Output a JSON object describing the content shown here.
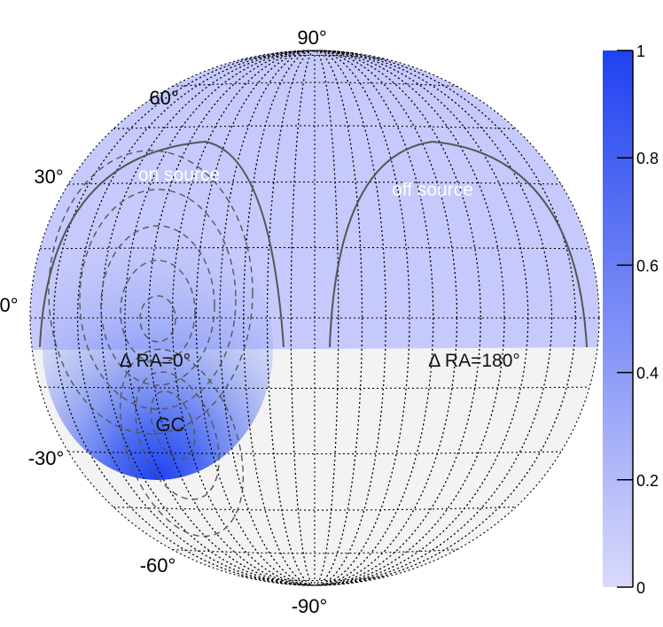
{
  "chart_data": {
    "type": "heatmap",
    "projection": "aitoff",
    "lat_ticks": [
      {
        "value": 90,
        "label": "90°"
      },
      {
        "value": 60,
        "label": "60°"
      },
      {
        "value": 30,
        "label": "30°"
      },
      {
        "value": 0,
        "label": "0°"
      },
      {
        "value": -30,
        "label": "-30°"
      },
      {
        "value": -60,
        "label": "-60°"
      },
      {
        "value": -90,
        "label": "-90°"
      }
    ],
    "colorbar": {
      "range": [
        0,
        1
      ],
      "ticks": [
        {
          "value": 0,
          "label": "0"
        },
        {
          "value": 0.2,
          "label": "0.2"
        },
        {
          "value": 0.4,
          "label": "0.4"
        },
        {
          "value": 0.6,
          "label": "0.6"
        },
        {
          "value": 0.8,
          "label": "0.8"
        },
        {
          "value": 1,
          "label": "1"
        }
      ],
      "low_color": "#d9d9fb",
      "high_color": "#1f42f0"
    },
    "annotations": [
      {
        "id": "on-source",
        "text": "on source"
      },
      {
        "id": "off-source",
        "text": "off source"
      },
      {
        "id": "dra-0",
        "text": "Δ RA=0°"
      },
      {
        "id": "dra-180",
        "text": "Δ RA=180°"
      },
      {
        "id": "gc",
        "text": "GC"
      }
    ],
    "colors": {
      "visible_sky": "#c6c9fb",
      "unobserved_sky": "#f3f3f3",
      "peak": "#1f42f0",
      "grid": "#000000",
      "contours": "#555555"
    }
  }
}
